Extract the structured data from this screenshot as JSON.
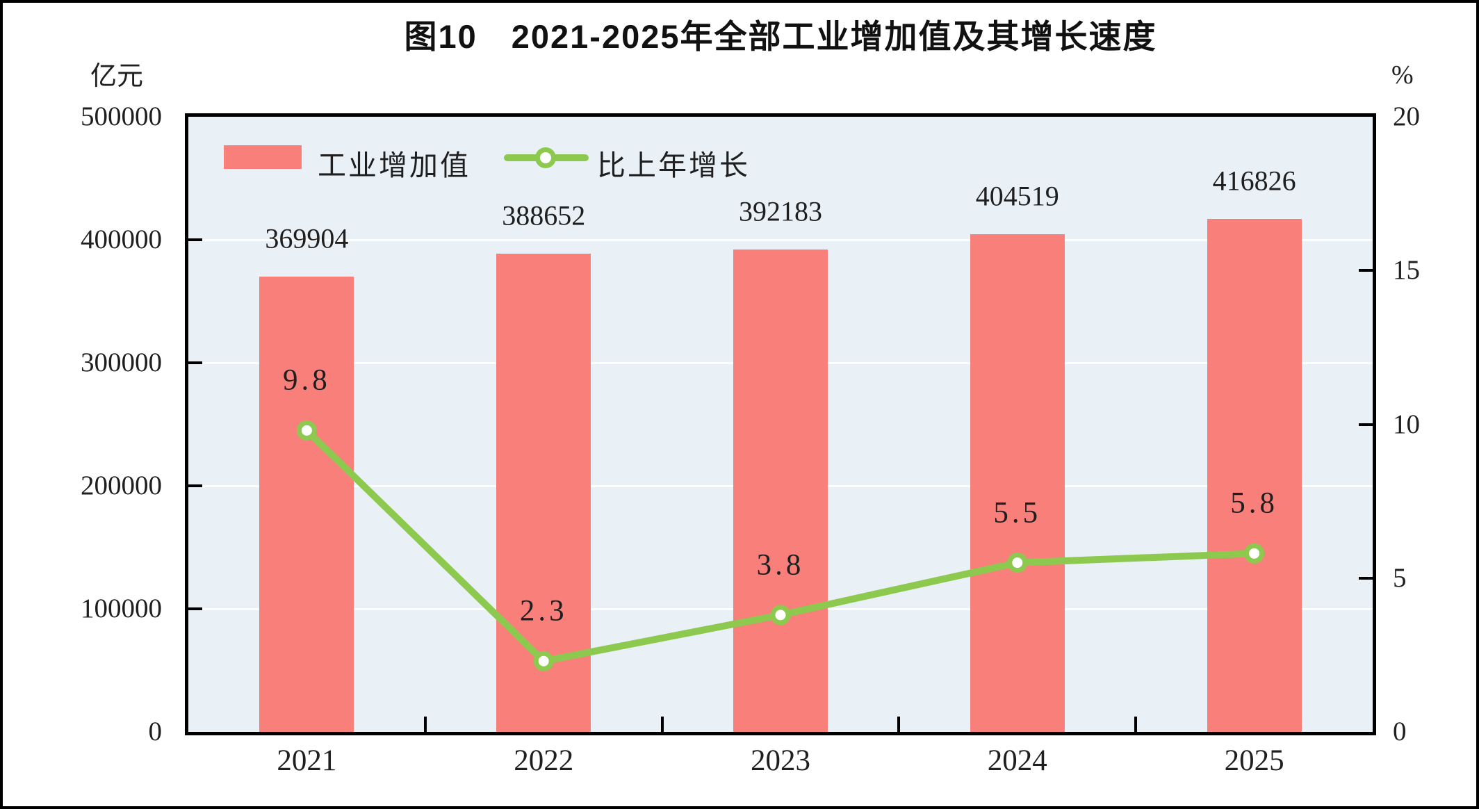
{
  "title": "图10　2021-2025年全部工业增加值及其增长速度",
  "left_axis": {
    "unit": "亿元",
    "min": 0,
    "max": 500000,
    "tick_step": 100000,
    "ticks": [
      "500000",
      "400000",
      "300000",
      "200000",
      "100000",
      "0"
    ]
  },
  "right_axis": {
    "unit": "%",
    "min": 0,
    "max": 20,
    "tick_step": 5,
    "ticks": [
      "20",
      "15",
      "10",
      "5",
      "0"
    ]
  },
  "legend": [
    {
      "label": "工业增加值",
      "type": "bar"
    },
    {
      "label": "比上年增长",
      "type": "line"
    }
  ],
  "chart_data": {
    "type": "combo",
    "title": "图10　2021-2025年全部工业增加值及其增长速度",
    "categories": [
      "2021",
      "2022",
      "2023",
      "2024",
      "2025"
    ],
    "series": [
      {
        "name": "工业增加值",
        "type": "bar",
        "axis": "left",
        "unit": "亿元",
        "values": [
          369904,
          388652,
          392183,
          404519,
          416826
        ]
      },
      {
        "name": "比上年增长",
        "type": "line",
        "axis": "right",
        "unit": "%",
        "values": [
          9.8,
          2.3,
          3.8,
          5.5,
          5.8
        ]
      }
    ],
    "left_ylim": [
      0,
      500000
    ],
    "right_ylim": [
      0,
      20
    ],
    "grid": true,
    "legend_position": "top-left"
  },
  "colors": {
    "bar": "#F97F7B",
    "line": "#8CC94E",
    "plot_bg": "#E9F1F6",
    "gridline": "#FDFEFF",
    "border": "#000000",
    "text": "#1F1F1F"
  }
}
